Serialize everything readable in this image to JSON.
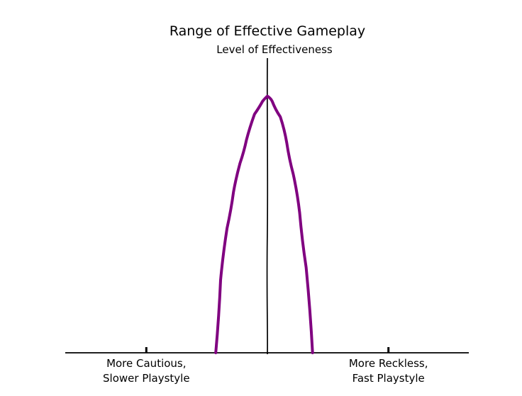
{
  "chart_data": {
    "type": "line",
    "title": "Range of Effective Gameplay",
    "ylabel": "Level of Effectiveness",
    "xlabel": "",
    "xlim": [
      -1,
      1
    ],
    "ylim": [
      0,
      1
    ],
    "grid": false,
    "x_ticks": [
      {
        "value": -0.75,
        "label_lines": [
          "More Cautious,",
          "Slower Playstyle"
        ]
      },
      {
        "value": 0.75,
        "label_lines": [
          "More Reckless,",
          "Fast Playstyle"
        ]
      }
    ],
    "series": [
      {
        "color": "#800080",
        "x": [
          -0.32,
          -0.29,
          -0.25,
          -0.21,
          -0.17,
          -0.13,
          -0.08,
          -0.03,
          0.0,
          0.03,
          0.08,
          0.12,
          0.16,
          0.2,
          0.24,
          0.28
        ],
        "y": [
          0.0,
          0.28,
          0.48,
          0.62,
          0.73,
          0.82,
          0.92,
          0.97,
          0.99,
          0.97,
          0.91,
          0.81,
          0.69,
          0.54,
          0.33,
          0.0
        ]
      }
    ]
  }
}
